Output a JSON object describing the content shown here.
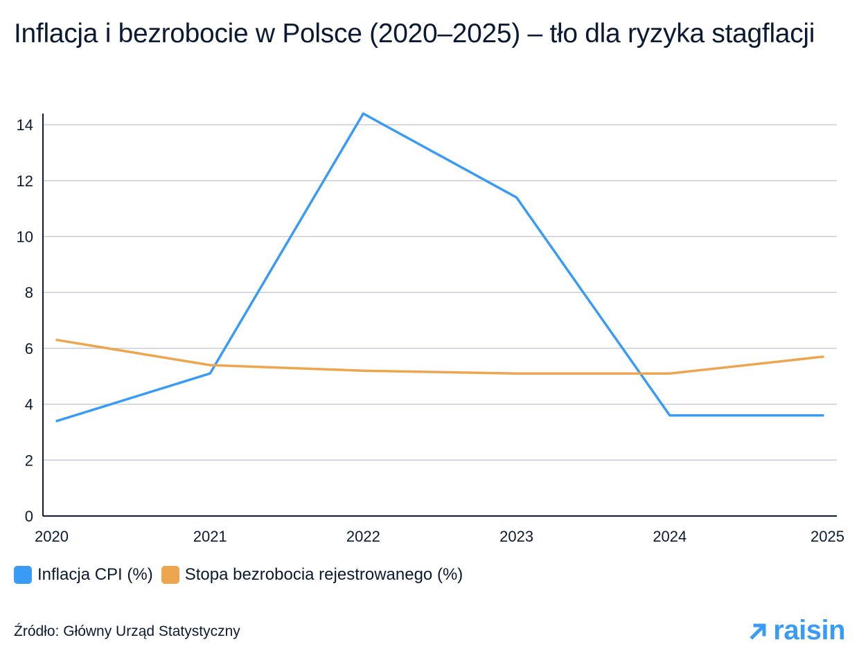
{
  "title": "Inflacja i bezrobocie w Polsce (2020–2025) – tło dla ryzyka stagflacji",
  "source": "Źródło: Główny Urząd Statystyczny",
  "logo": {
    "text": "raisin",
    "icon": "arrow-up-right-icon"
  },
  "colors": {
    "inflation": "#3a9bf5",
    "unemployment": "#eda54e",
    "grid": "#c9ccd6",
    "axis": "#0b1a33"
  },
  "chart_data": {
    "type": "line",
    "x": [
      "2020",
      "2021",
      "2022",
      "2023",
      "2024",
      "2025"
    ],
    "series": [
      {
        "name": "Inflacja CPI (%)",
        "values": [
          3.4,
          5.1,
          14.4,
          11.4,
          3.6,
          3.6
        ]
      },
      {
        "name": "Stopa bezrobocia rejestrowanego (%)",
        "values": [
          6.3,
          5.4,
          5.2,
          5.1,
          5.1,
          5.7
        ]
      }
    ],
    "ylim": [
      0,
      14.4
    ],
    "yticks": [
      0,
      2,
      4,
      6,
      8,
      10,
      12,
      14
    ],
    "grid": true,
    "legend_position": "bottom-left"
  }
}
